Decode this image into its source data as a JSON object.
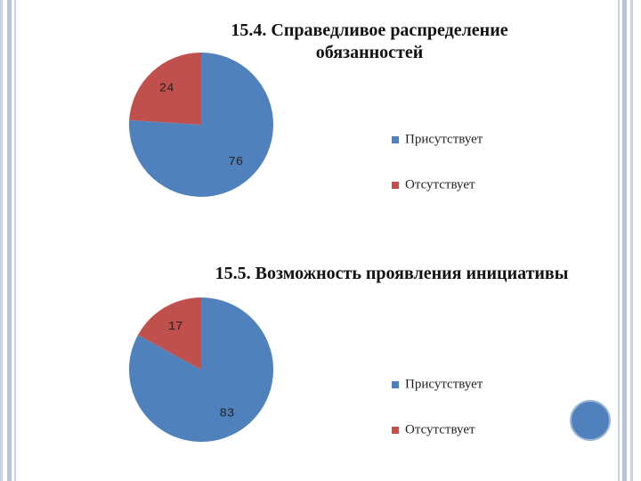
{
  "chart_data": [
    {
      "type": "pie",
      "title": "15.4. Справедливое распределение обязанностей",
      "categories": [
        "Присутствует",
        "Отсутствует"
      ],
      "values": [
        76,
        24
      ],
      "colors": [
        "#4f81bd",
        "#c0504d"
      ]
    },
    {
      "type": "pie",
      "title": "15.5. Возможность проявления инициативы",
      "categories": [
        "Присутствует",
        "Отсутствует"
      ],
      "values": [
        83,
        17
      ],
      "colors": [
        "#4f81bd",
        "#c0504d"
      ]
    }
  ]
}
